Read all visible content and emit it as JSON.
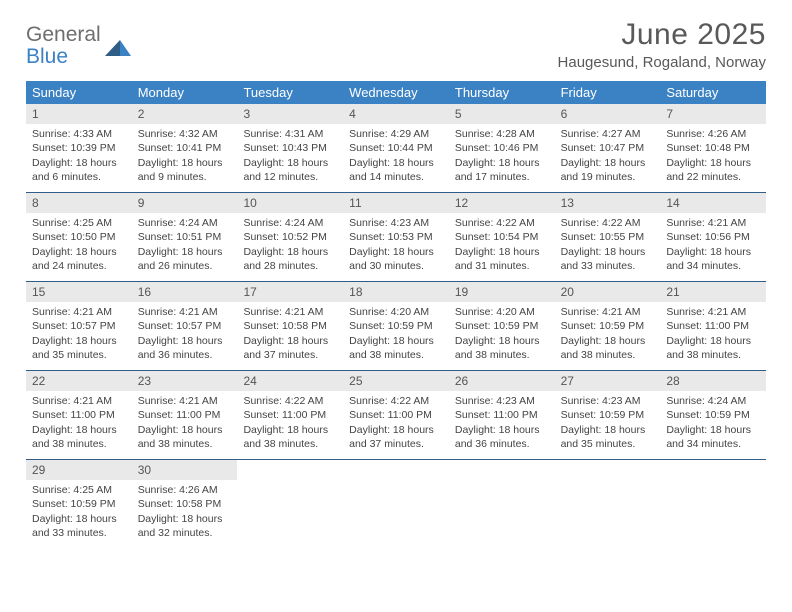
{
  "logo": {
    "word1": "General",
    "word2": "Blue"
  },
  "title": "June 2025",
  "location": "Haugesund, Rogaland, Norway",
  "colors": {
    "header_bar": "#3b82c4",
    "week_divider": "#2f5d86",
    "daynum_bg": "#e9e9e9",
    "text": "#444444",
    "title_text": "#595959",
    "logo_gray": "#6e6e6e",
    "logo_blue": "#3b82c4"
  },
  "day_labels": [
    "Sunday",
    "Monday",
    "Tuesday",
    "Wednesday",
    "Thursday",
    "Friday",
    "Saturday"
  ],
  "weeks": [
    [
      {
        "n": "1",
        "sunrise": "4:33 AM",
        "sunset": "10:39 PM",
        "dl": "18 hours and 6 minutes."
      },
      {
        "n": "2",
        "sunrise": "4:32 AM",
        "sunset": "10:41 PM",
        "dl": "18 hours and 9 minutes."
      },
      {
        "n": "3",
        "sunrise": "4:31 AM",
        "sunset": "10:43 PM",
        "dl": "18 hours and 12 minutes."
      },
      {
        "n": "4",
        "sunrise": "4:29 AM",
        "sunset": "10:44 PM",
        "dl": "18 hours and 14 minutes."
      },
      {
        "n": "5",
        "sunrise": "4:28 AM",
        "sunset": "10:46 PM",
        "dl": "18 hours and 17 minutes."
      },
      {
        "n": "6",
        "sunrise": "4:27 AM",
        "sunset": "10:47 PM",
        "dl": "18 hours and 19 minutes."
      },
      {
        "n": "7",
        "sunrise": "4:26 AM",
        "sunset": "10:48 PM",
        "dl": "18 hours and 22 minutes."
      }
    ],
    [
      {
        "n": "8",
        "sunrise": "4:25 AM",
        "sunset": "10:50 PM",
        "dl": "18 hours and 24 minutes."
      },
      {
        "n": "9",
        "sunrise": "4:24 AM",
        "sunset": "10:51 PM",
        "dl": "18 hours and 26 minutes."
      },
      {
        "n": "10",
        "sunrise": "4:24 AM",
        "sunset": "10:52 PM",
        "dl": "18 hours and 28 minutes."
      },
      {
        "n": "11",
        "sunrise": "4:23 AM",
        "sunset": "10:53 PM",
        "dl": "18 hours and 30 minutes."
      },
      {
        "n": "12",
        "sunrise": "4:22 AM",
        "sunset": "10:54 PM",
        "dl": "18 hours and 31 minutes."
      },
      {
        "n": "13",
        "sunrise": "4:22 AM",
        "sunset": "10:55 PM",
        "dl": "18 hours and 33 minutes."
      },
      {
        "n": "14",
        "sunrise": "4:21 AM",
        "sunset": "10:56 PM",
        "dl": "18 hours and 34 minutes."
      }
    ],
    [
      {
        "n": "15",
        "sunrise": "4:21 AM",
        "sunset": "10:57 PM",
        "dl": "18 hours and 35 minutes."
      },
      {
        "n": "16",
        "sunrise": "4:21 AM",
        "sunset": "10:57 PM",
        "dl": "18 hours and 36 minutes."
      },
      {
        "n": "17",
        "sunrise": "4:21 AM",
        "sunset": "10:58 PM",
        "dl": "18 hours and 37 minutes."
      },
      {
        "n": "18",
        "sunrise": "4:20 AM",
        "sunset": "10:59 PM",
        "dl": "18 hours and 38 minutes."
      },
      {
        "n": "19",
        "sunrise": "4:20 AM",
        "sunset": "10:59 PM",
        "dl": "18 hours and 38 minutes."
      },
      {
        "n": "20",
        "sunrise": "4:21 AM",
        "sunset": "10:59 PM",
        "dl": "18 hours and 38 minutes."
      },
      {
        "n": "21",
        "sunrise": "4:21 AM",
        "sunset": "11:00 PM",
        "dl": "18 hours and 38 minutes."
      }
    ],
    [
      {
        "n": "22",
        "sunrise": "4:21 AM",
        "sunset": "11:00 PM",
        "dl": "18 hours and 38 minutes."
      },
      {
        "n": "23",
        "sunrise": "4:21 AM",
        "sunset": "11:00 PM",
        "dl": "18 hours and 38 minutes."
      },
      {
        "n": "24",
        "sunrise": "4:22 AM",
        "sunset": "11:00 PM",
        "dl": "18 hours and 38 minutes."
      },
      {
        "n": "25",
        "sunrise": "4:22 AM",
        "sunset": "11:00 PM",
        "dl": "18 hours and 37 minutes."
      },
      {
        "n": "26",
        "sunrise": "4:23 AM",
        "sunset": "11:00 PM",
        "dl": "18 hours and 36 minutes."
      },
      {
        "n": "27",
        "sunrise": "4:23 AM",
        "sunset": "10:59 PM",
        "dl": "18 hours and 35 minutes."
      },
      {
        "n": "28",
        "sunrise": "4:24 AM",
        "sunset": "10:59 PM",
        "dl": "18 hours and 34 minutes."
      }
    ],
    [
      {
        "n": "29",
        "sunrise": "4:25 AM",
        "sunset": "10:59 PM",
        "dl": "18 hours and 33 minutes."
      },
      {
        "n": "30",
        "sunrise": "4:26 AM",
        "sunset": "10:58 PM",
        "dl": "18 hours and 32 minutes."
      },
      null,
      null,
      null,
      null,
      null
    ]
  ],
  "labels": {
    "sunrise": "Sunrise: ",
    "sunset": "Sunset: ",
    "daylight": "Daylight: "
  }
}
